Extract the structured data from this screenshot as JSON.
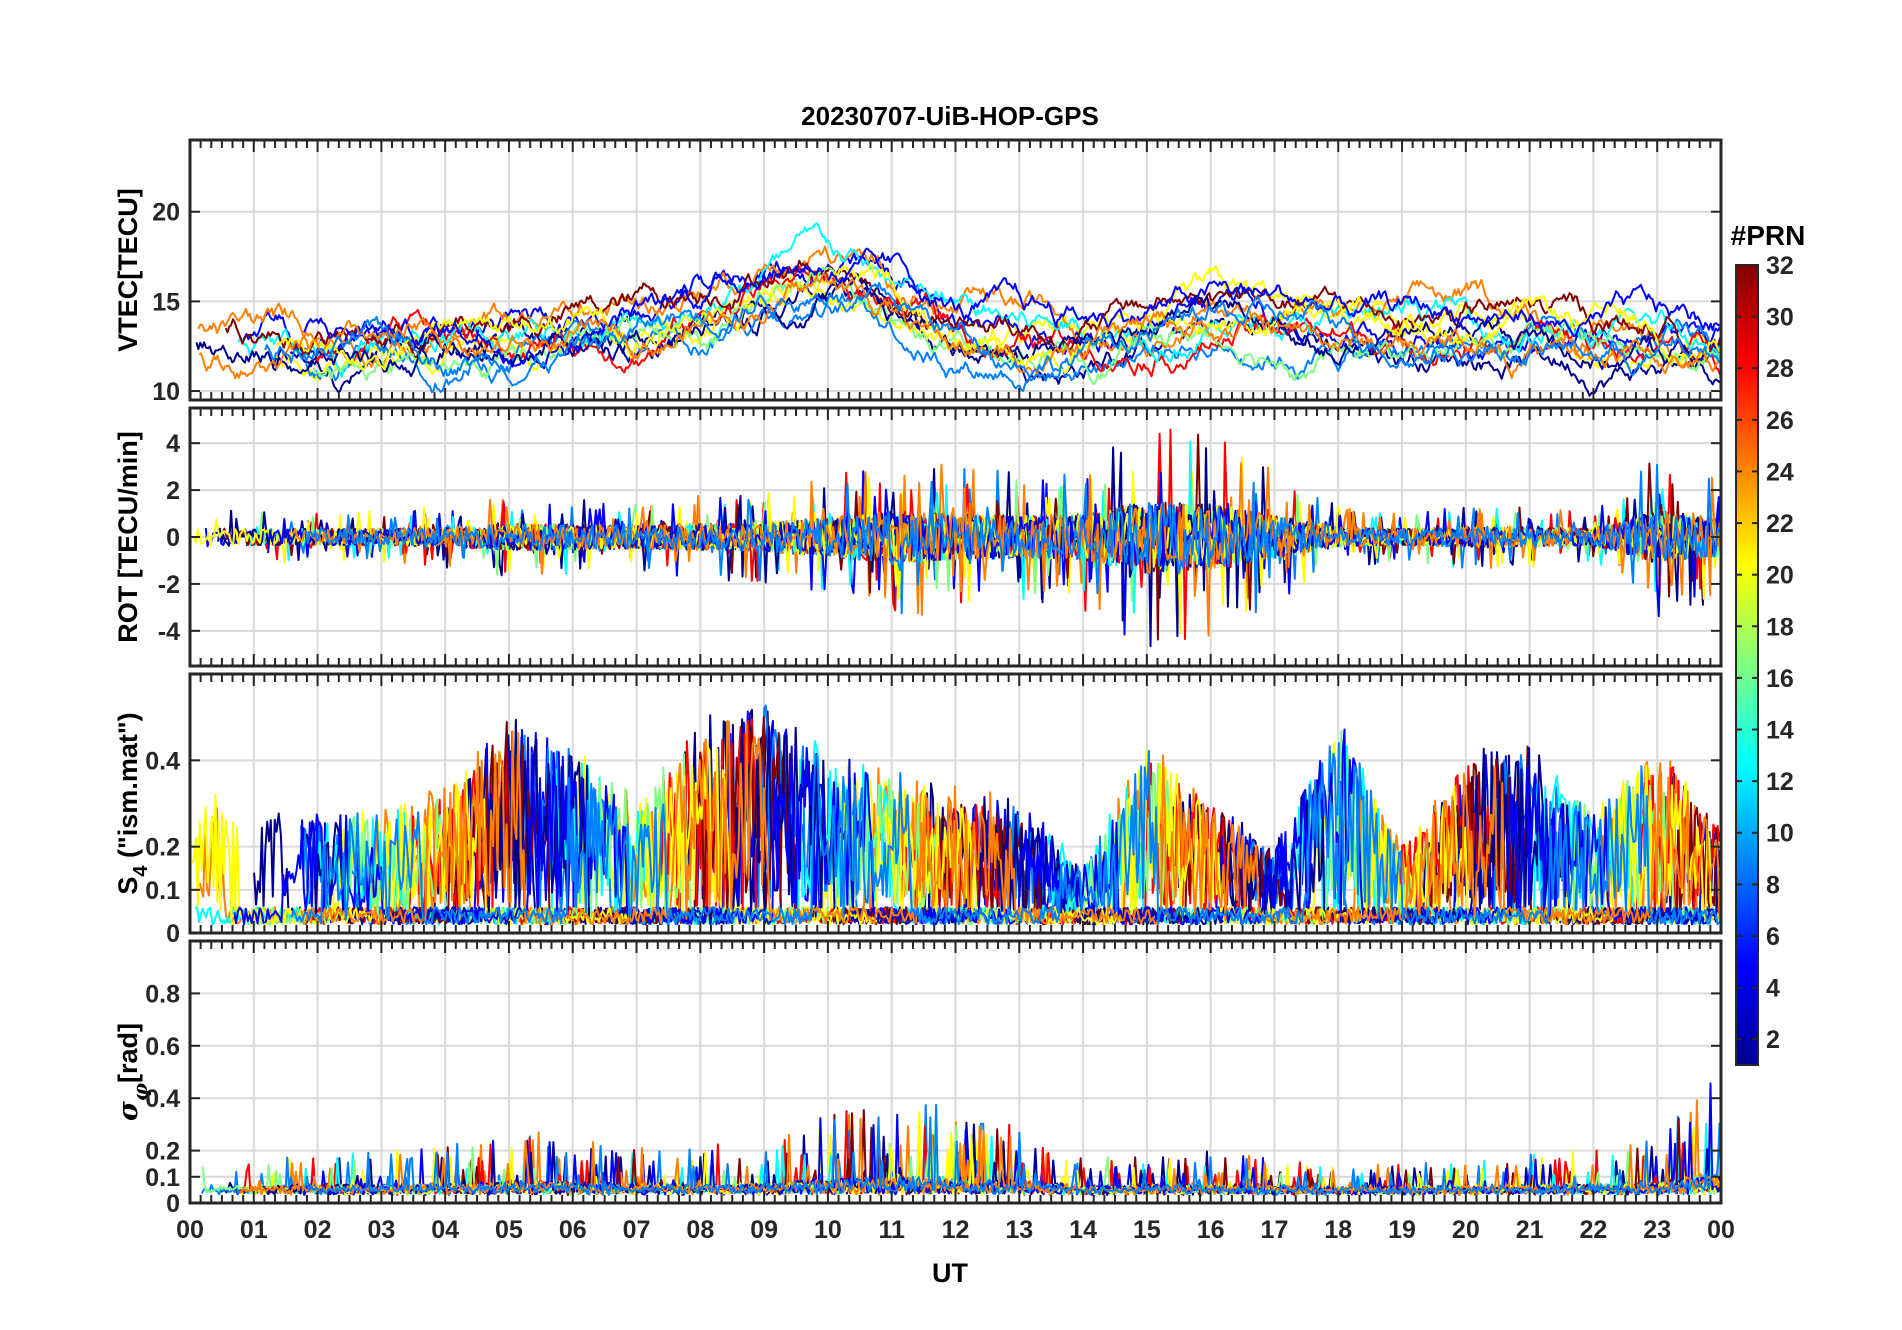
{
  "chart_data": {
    "type": "line",
    "title": "20230707-UiB-HOP-GPS",
    "xlabel": "UT",
    "x_tick_labels": [
      "00",
      "01",
      "02",
      "03",
      "04",
      "05",
      "06",
      "07",
      "08",
      "09",
      "10",
      "11",
      "12",
      "13",
      "14",
      "15",
      "16",
      "17",
      "18",
      "19",
      "20",
      "21",
      "22",
      "23",
      "00"
    ],
    "xlim_hours": [
      0,
      24
    ],
    "colorbar": {
      "label": "#PRN",
      "range": [
        1,
        32
      ],
      "tick_labels": [
        "2",
        "4",
        "6",
        "8",
        "10",
        "12",
        "14",
        "16",
        "18",
        "20",
        "22",
        "24",
        "26",
        "28",
        "30",
        "32"
      ],
      "colormap": "jet",
      "colors": [
        "#00008f",
        "#0000ff",
        "#0080ff",
        "#00ffff",
        "#80ff80",
        "#ffff00",
        "#ff8000",
        "#ff0000",
        "#800000"
      ]
    },
    "grid": true,
    "panels": [
      {
        "name": "VTEC",
        "ylabel": "VTEC[TECU]",
        "ylim": [
          9.5,
          24
        ],
        "y_tick_labels": [
          "10",
          "15",
          "20"
        ],
        "y_ticks": [
          10,
          15,
          20
        ],
        "baseline": [
          12.8,
          12.5,
          12.3,
          12.3,
          12.4,
          12.8,
          13.2,
          13.6,
          14.8,
          16.5,
          16.8,
          15.2,
          13.5,
          13,
          13,
          13.8,
          14.3,
          14,
          13.5,
          13.2,
          13.5,
          13.3,
          12.7,
          12.6,
          12.3
        ],
        "noise": 1.5,
        "spikes": []
      },
      {
        "name": "ROT",
        "ylabel": "ROT [TECU/min]",
        "ylim": [
          -5.5,
          5.5
        ],
        "y_tick_labels": [
          "-4",
          "-2",
          "0",
          "2",
          "4"
        ],
        "y_ticks": [
          -4,
          -2,
          0,
          2,
          4
        ],
        "envelope": [
          0.6,
          0.5,
          0.5,
          0.5,
          0.6,
          0.8,
          0.8,
          0.7,
          0.8,
          0.9,
          1.2,
          1.6,
          1.4,
          1.3,
          1.4,
          2.2,
          2.0,
          1.3,
          0.6,
          0.5,
          0.6,
          0.6,
          0.5,
          1.6,
          1.2
        ],
        "spikes": []
      },
      {
        "name": "S4",
        "ylabel": "S4 (\"ism.mat\")",
        "ylim": [
          0,
          0.6
        ],
        "y_tick_labels": [
          "0",
          "0.1",
          "0.2",
          "0.4"
        ],
        "y_ticks": [
          0,
          0.1,
          0.2,
          0.4
        ],
        "envelope": [
          0.22,
          0.2,
          0.18,
          0.18,
          0.22,
          0.35,
          0.3,
          0.2,
          0.35,
          0.38,
          0.28,
          0.25,
          0.22,
          0.2,
          0.08,
          0.3,
          0.2,
          0.12,
          0.35,
          0.12,
          0.28,
          0.3,
          0.18,
          0.3,
          0.15
        ],
        "spikes": []
      },
      {
        "name": "sigma_phi",
        "ylabel": "σφ[rad]",
        "ylim": [
          0,
          1.0
        ],
        "y_tick_labels": [
          "0",
          "0.1",
          "0.2",
          "0.4",
          "0.6",
          "0.8"
        ],
        "y_ticks": [
          0,
          0.1,
          0.2,
          0.4,
          0.6,
          0.8
        ],
        "envelope": [
          0.05,
          0.05,
          0.06,
          0.06,
          0.07,
          0.1,
          0.08,
          0.07,
          0.07,
          0.07,
          0.12,
          0.14,
          0.13,
          0.1,
          0.05,
          0.06,
          0.06,
          0.05,
          0.04,
          0.04,
          0.05,
          0.06,
          0.06,
          0.08,
          0.2
        ],
        "spikes": []
      }
    ]
  }
}
